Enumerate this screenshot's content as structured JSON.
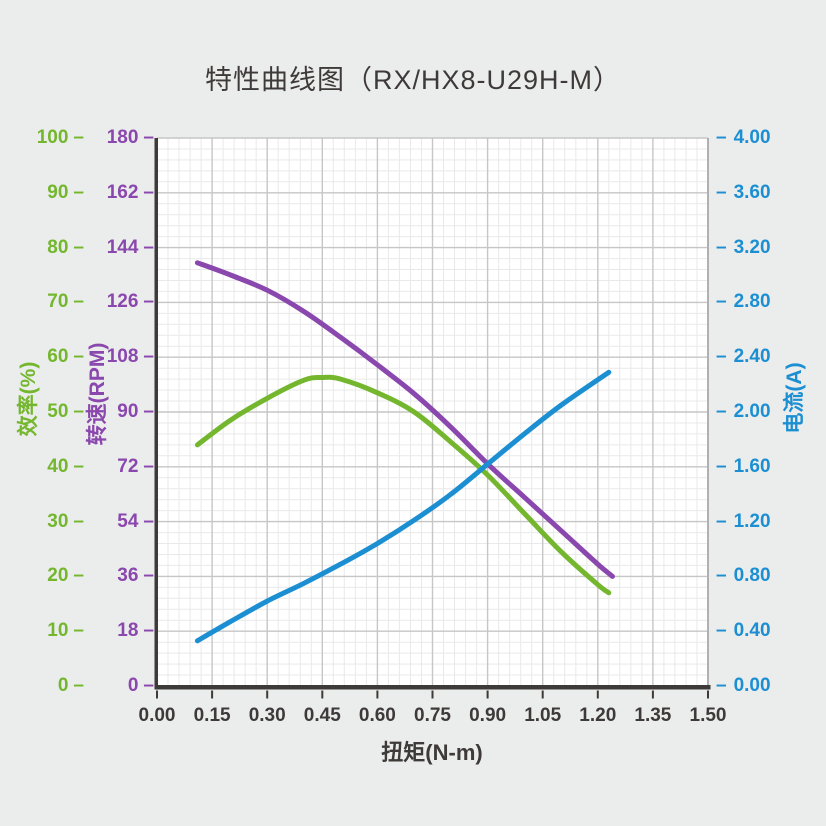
{
  "chart_data": {
    "type": "line",
    "title": "特性曲线图（RX/HX8-U29H-M）",
    "xlabel": "扭矩(N-m)",
    "xlim": [
      0.0,
      1.5
    ],
    "x_tick_labels": [
      "0.00",
      "0.15",
      "0.30",
      "0.45",
      "0.60",
      "0.75",
      "0.90",
      "1.05",
      "1.20",
      "1.35",
      "1.50"
    ],
    "x_tick_step": 0.15,
    "grid": "on",
    "grid_minor_divisions": 5,
    "legend": "none",
    "tick_dash": "–",
    "y_axes": [
      {
        "id": "efficiency",
        "label": "效率(%)",
        "color": "#74b72e",
        "min": 0,
        "max": 100,
        "tick_step": 10,
        "tick_labels": [
          "100",
          "90",
          "80",
          "70",
          "60",
          "50",
          "40",
          "30",
          "20",
          "10",
          "0"
        ],
        "side": "left-outer",
        "dash_side": "after"
      },
      {
        "id": "speed",
        "label": "转速(RPM)",
        "color": "#8a47ad",
        "min": 0,
        "max": 180,
        "tick_step": 18,
        "tick_labels": [
          "180",
          "162",
          "144",
          "126",
          "108",
          "90",
          "72",
          "54",
          "36",
          "18",
          "0"
        ],
        "side": "left-inner",
        "dash_side": "after"
      },
      {
        "id": "current",
        "label": "电流(A)",
        "color": "#1b8fd2",
        "min": 0,
        "max": 4,
        "tick_step": 0.4,
        "tick_labels": [
          "4.00",
          "3.60",
          "3.20",
          "2.80",
          "2.40",
          "2.00",
          "1.60",
          "1.20",
          "0.80",
          "0.40",
          "0.00"
        ],
        "side": "right",
        "dash_side": "before"
      }
    ],
    "series": [
      {
        "name": "转速(RPM)",
        "axis": "speed",
        "color": "#8a47ad",
        "points": [
          [
            0.11,
            139
          ],
          [
            0.2,
            135
          ],
          [
            0.3,
            130
          ],
          [
            0.4,
            123
          ],
          [
            0.5,
            114.5
          ],
          [
            0.6,
            105.5
          ],
          [
            0.7,
            96
          ],
          [
            0.8,
            85
          ],
          [
            0.9,
            73
          ],
          [
            1.0,
            62
          ],
          [
            1.1,
            51
          ],
          [
            1.2,
            40
          ],
          [
            1.24,
            36
          ]
        ]
      },
      {
        "name": "效率(%)",
        "axis": "efficiency",
        "color": "#74b72e",
        "points": [
          [
            0.11,
            44
          ],
          [
            0.2,
            48.5
          ],
          [
            0.3,
            52.5
          ],
          [
            0.4,
            55.8
          ],
          [
            0.45,
            56.3
          ],
          [
            0.5,
            56
          ],
          [
            0.6,
            53.5
          ],
          [
            0.7,
            50
          ],
          [
            0.8,
            44.5
          ],
          [
            0.9,
            38.5
          ],
          [
            1.0,
            31.5
          ],
          [
            1.1,
            24.5
          ],
          [
            1.2,
            18.5
          ],
          [
            1.23,
            17
          ]
        ]
      },
      {
        "name": "电流(A)",
        "axis": "current",
        "color": "#1b8fd2",
        "points": [
          [
            0.11,
            0.33
          ],
          [
            0.2,
            0.47
          ],
          [
            0.3,
            0.62
          ],
          [
            0.4,
            0.75
          ],
          [
            0.5,
            0.89
          ],
          [
            0.6,
            1.04
          ],
          [
            0.7,
            1.21
          ],
          [
            0.8,
            1.4
          ],
          [
            0.9,
            1.62
          ],
          [
            1.0,
            1.84
          ],
          [
            1.1,
            2.05
          ],
          [
            1.23,
            2.29
          ]
        ]
      }
    ],
    "colors": {
      "background": "#ebecec",
      "plot_background": "#ffffff",
      "grid_major": "#c6c6c6",
      "grid_minor": "#e9e9e9",
      "axis_dark": "#3e3a39",
      "right_spine": "#b0b0b0"
    }
  }
}
